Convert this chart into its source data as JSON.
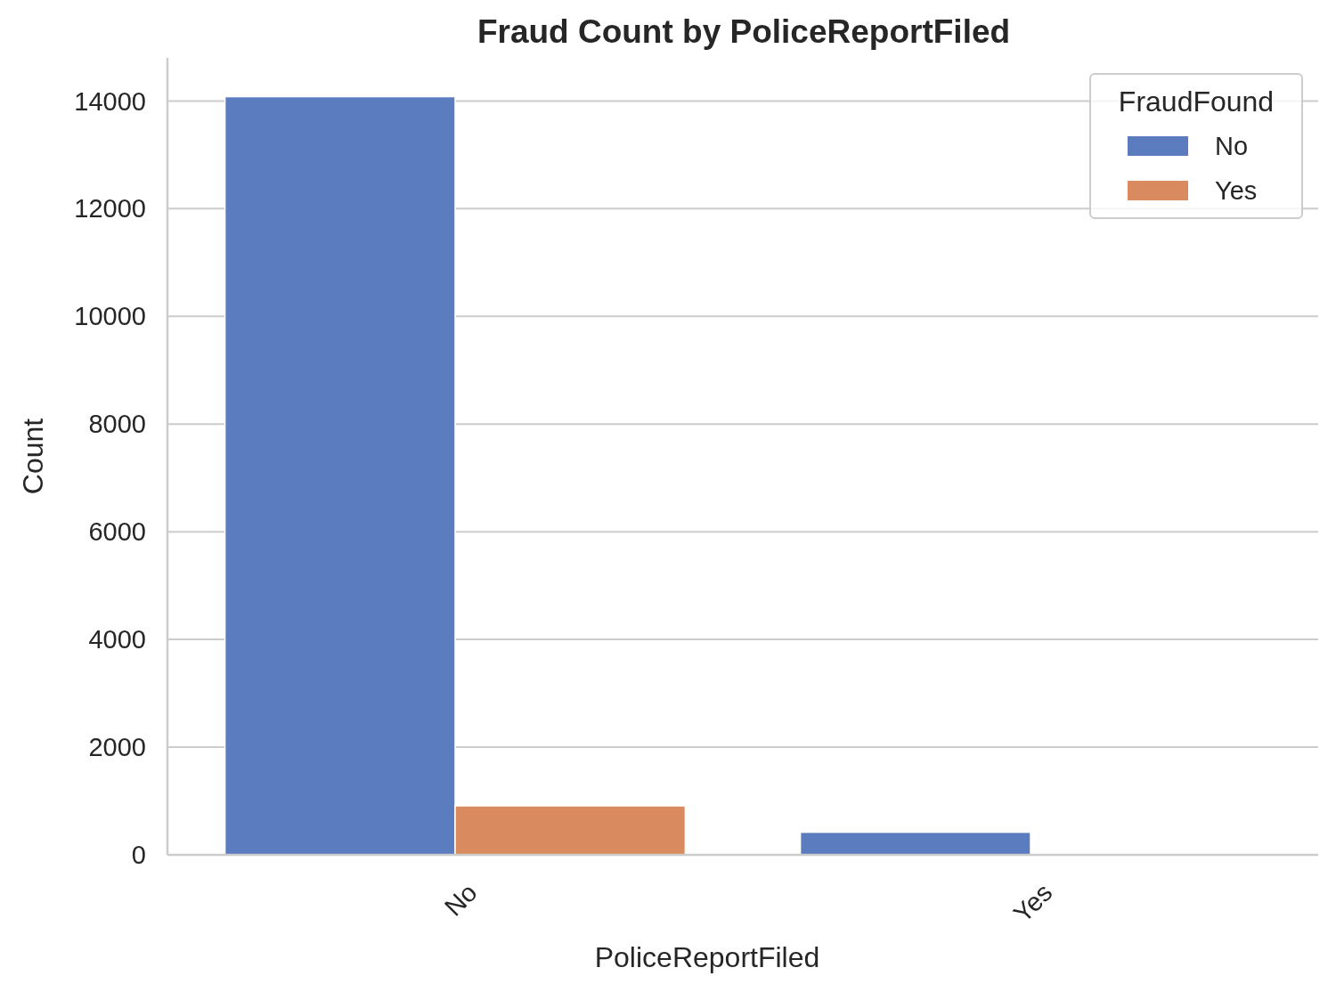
{
  "chart_data": {
    "type": "bar",
    "title": "Fraud Count by PoliceReportFiled",
    "xlabel": "PoliceReportFiled",
    "ylabel": "Count",
    "legend_title": "FraudFound",
    "categories": [
      "No",
      "Yes"
    ],
    "series": [
      {
        "name": "No",
        "color": "#5b7dbf",
        "values": [
          14080,
          420
        ]
      },
      {
        "name": "Yes",
        "color": "#d98b5f",
        "values": [
          910,
          null
        ]
      }
    ],
    "ylim": [
      0,
      14800
    ],
    "yticks": [
      0,
      2000,
      4000,
      6000,
      8000,
      10000,
      12000,
      14000
    ],
    "grid": "y",
    "legend": "top right"
  }
}
